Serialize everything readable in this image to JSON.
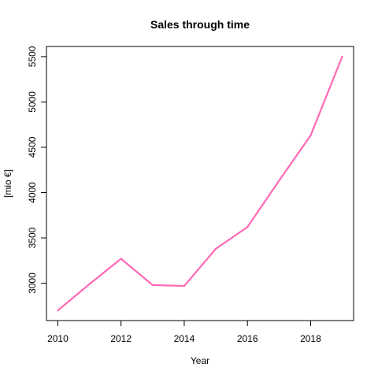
{
  "chart_data": {
    "type": "line",
    "title": "Sales through time",
    "xlabel": "Year",
    "ylabel": "[mio €]",
    "x": [
      2010,
      2011,
      2012,
      2013,
      2014,
      2015,
      2016,
      2017,
      2018,
      2019
    ],
    "series": [
      {
        "values": [
          2700,
          2990,
          3270,
          2980,
          2970,
          3380,
          3620,
          4130,
          4630,
          5500
        ],
        "color": "#FF69B4"
      }
    ],
    "xlim": [
      2009.64,
      2019.36
    ],
    "ylim": [
      2588,
      5612
    ],
    "xticks": [
      2010,
      2012,
      2014,
      2016,
      2018
    ],
    "xtick_labels": [
      "2010",
      "2012",
      "2014",
      "2016",
      "2018"
    ],
    "yticks": [
      3000,
      3500,
      4000,
      4500,
      5000,
      5500
    ],
    "ytick_labels": [
      "3000",
      "3500",
      "4000",
      "4500",
      "5000",
      "5500"
    ],
    "grid": false,
    "legend": "none"
  }
}
